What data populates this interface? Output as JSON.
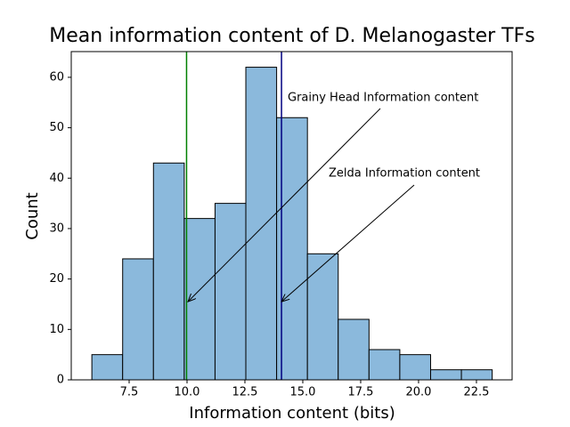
{
  "chart_data": {
    "type": "histogram",
    "title": "Mean information content of D. Melanogaster TFs",
    "x_label": "Information content (bits)",
    "y_label": "Count",
    "bins": [
      5.89,
      7.22,
      8.55,
      9.88,
      11.21,
      12.54,
      13.87,
      15.2,
      16.53,
      17.86,
      19.19,
      20.52,
      21.85,
      23.18
    ],
    "counts": [
      5,
      24,
      43,
      32,
      35,
      62,
      52,
      25,
      12,
      6,
      5,
      2,
      2
    ],
    "color": "#8bb9dc",
    "edge_color": "#000000",
    "xlim": [
      5.0,
      24.04
    ],
    "ylim": [
      0,
      65.1
    ],
    "xticks": [
      7.5,
      {
        "value": 10,
        "label": "10.0"
      },
      12.5,
      {
        "value": 15,
        "label": "15.0"
      },
      17.5,
      {
        "value": 20,
        "label": "20.0"
      },
      22.5
    ],
    "yticks": [
      0,
      10,
      20,
      30,
      40,
      50,
      60
    ],
    "vlines": [
      {
        "x": 9.98,
        "color": "green"
      },
      {
        "x": 14.08,
        "color": "navy"
      }
    ],
    "annotations": [
      {
        "text": "Grainy Head Information content",
        "xy": [
          10.04,
          15.5
        ]
      },
      {
        "text": "Zelda Information content",
        "xy": [
          14.08,
          15.5
        ]
      }
    ]
  }
}
